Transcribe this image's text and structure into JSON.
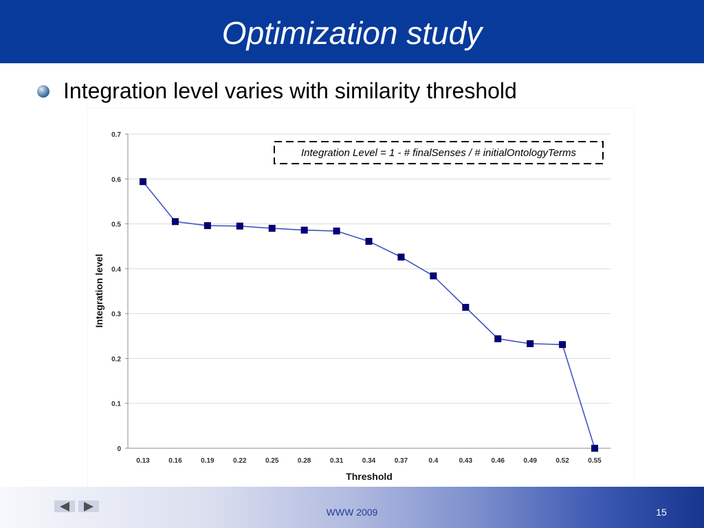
{
  "slide": {
    "title": "Optimization study",
    "bullet_icon": "sphere-bullet-icon",
    "bullet": "Integration level varies with similarity threshold",
    "footer_text": "WWW 2009",
    "page_number": "15"
  },
  "navigation": {
    "prev_icon": "arrow-left-icon",
    "next_icon": "arrow-right-icon"
  },
  "colors": {
    "header_bg": "#073a9b",
    "title_text": "#ffffff",
    "footer_text": "#1d3b98",
    "series_line": "#4055c0",
    "series_marker": "#000080"
  },
  "chart_data": {
    "type": "line",
    "x": [
      0.13,
      0.16,
      0.19,
      0.22,
      0.25,
      0.28,
      0.31,
      0.34,
      0.37,
      0.4,
      0.43,
      0.46,
      0.49,
      0.52,
      0.55
    ],
    "series": [
      {
        "values": [
          0.594,
          0.505,
          0.496,
          0.495,
          0.49,
          0.486,
          0.484,
          0.461,
          0.426,
          0.384,
          0.314,
          0.244,
          0.233,
          0.231,
          0.0
        ]
      }
    ],
    "xlabel": "Threshold",
    "ylabel": "Integration level",
    "ylim": [
      0,
      0.7
    ],
    "yticks": [
      0,
      0.1,
      0.2,
      0.3,
      0.4,
      0.5,
      0.6,
      0.7
    ],
    "grid": true,
    "annotation": "Integration Level = 1 - # finalSenses / # initialOntologyTerms"
  }
}
